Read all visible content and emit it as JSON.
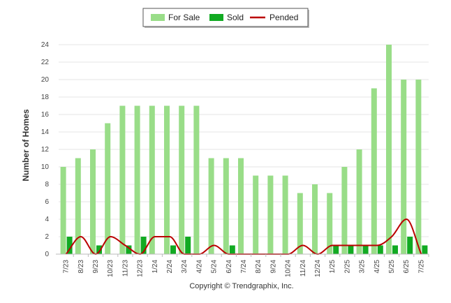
{
  "chart_data": {
    "type": "bar",
    "title": "",
    "xlabel": "",
    "ylabel": "Number of Homes",
    "ylim": [
      0,
      24
    ],
    "yticks": [
      0,
      2,
      4,
      6,
      8,
      10,
      12,
      14,
      16,
      18,
      20,
      22,
      24
    ],
    "grid": true,
    "legend_position": "top-center",
    "categories": [
      "7/23",
      "8/23",
      "9/23",
      "10/23",
      "11/23",
      "12/23",
      "1/24",
      "2/24",
      "3/24",
      "4/24",
      "5/24",
      "6/24",
      "7/24",
      "8/24",
      "9/24",
      "10/24",
      "11/24",
      "12/24",
      "1/25",
      "2/25",
      "3/25",
      "4/25",
      "5/25",
      "6/25",
      "7/25"
    ],
    "series": [
      {
        "name": "For Sale",
        "type": "bar",
        "color": "#99dd88",
        "values": [
          10,
          11,
          12,
          15,
          17,
          17,
          17,
          17,
          17,
          17,
          11,
          11,
          11,
          9,
          9,
          9,
          7,
          8,
          7,
          10,
          12,
          19,
          24,
          20,
          20
        ]
      },
      {
        "name": "Sold",
        "type": "bar",
        "color": "#11aa22",
        "values": [
          2,
          0,
          1,
          0,
          1,
          2,
          0,
          1,
          2,
          0,
          0,
          1,
          0,
          0,
          0,
          0,
          0,
          0,
          1,
          1,
          1,
          1,
          1,
          2,
          1
        ]
      },
      {
        "name": "Pended",
        "type": "line",
        "color": "#bb0000",
        "values": [
          0,
          2,
          0,
          2,
          1,
          0,
          2,
          2,
          0,
          0,
          1,
          0,
          0,
          0,
          0,
          0,
          1,
          0,
          1,
          1,
          1,
          1,
          2,
          4,
          0
        ]
      }
    ]
  },
  "copyright": "Copyright © Trendgraphix, Inc."
}
